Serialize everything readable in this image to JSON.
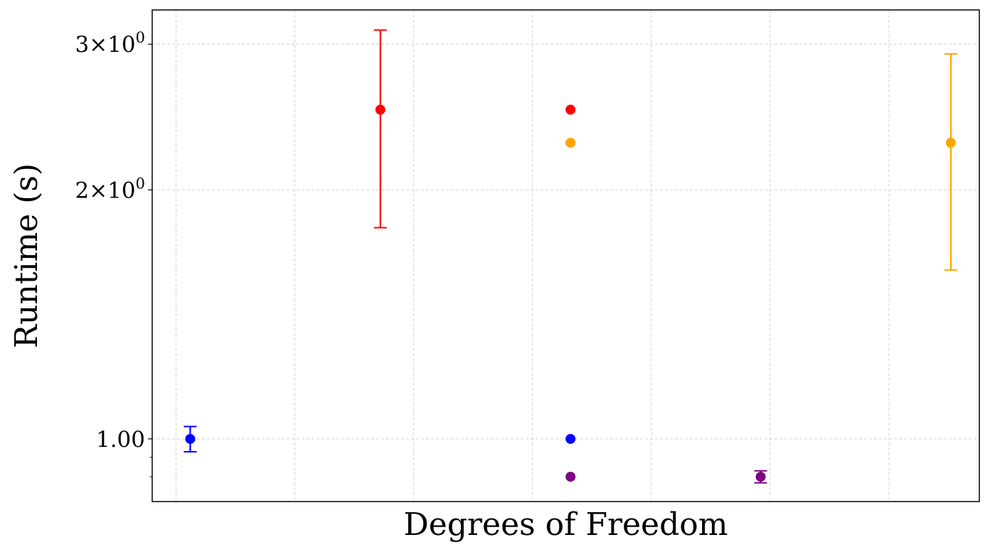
{
  "chart_data": {
    "type": "scatter",
    "title": "",
    "xlabel": "Degrees of Freedom",
    "ylabel": "Runtime (s)",
    "yscale": "log",
    "ylim": [
      0.84,
      3.3
    ],
    "xlim": [
      0,
      4.35
    ],
    "grid": true,
    "legend": "none",
    "y_ticks": [
      {
        "value": 1.0,
        "label": "1.00",
        "format": "plain"
      },
      {
        "value": 2.0,
        "label": "2",
        "format": "sci"
      },
      {
        "value": 3.0,
        "label": "3",
        "format": "sci"
      }
    ],
    "y_minor_ticks": [
      0.9,
      0.95
    ],
    "x_gridlines": [
      0.125,
      0.75,
      1.375,
      2.0,
      2.625,
      3.25,
      3.875
    ],
    "points": [
      {
        "x": 0.2,
        "y": 1.0,
        "yerr_low": 0.965,
        "yerr_high": 1.035,
        "color": "#0000ff"
      },
      {
        "x": 1.2,
        "y": 2.5,
        "yerr_low": 1.8,
        "yerr_high": 3.12,
        "color": "#ff0000"
      },
      {
        "x": 2.2,
        "y": 2.5,
        "color": "#ff0000"
      },
      {
        "x": 2.2,
        "y": 2.28,
        "color": "#ffa500"
      },
      {
        "x": 2.2,
        "y": 1.0,
        "color": "#0000ff"
      },
      {
        "x": 2.2,
        "y": 0.9,
        "color": "#800080"
      },
      {
        "x": 3.2,
        "y": 0.9,
        "yerr_low": 0.885,
        "yerr_high": 0.915,
        "color": "#800080"
      },
      {
        "x": 4.2,
        "y": 2.28,
        "yerr_low": 1.6,
        "yerr_high": 2.92,
        "color": "#ffa500"
      }
    ]
  }
}
